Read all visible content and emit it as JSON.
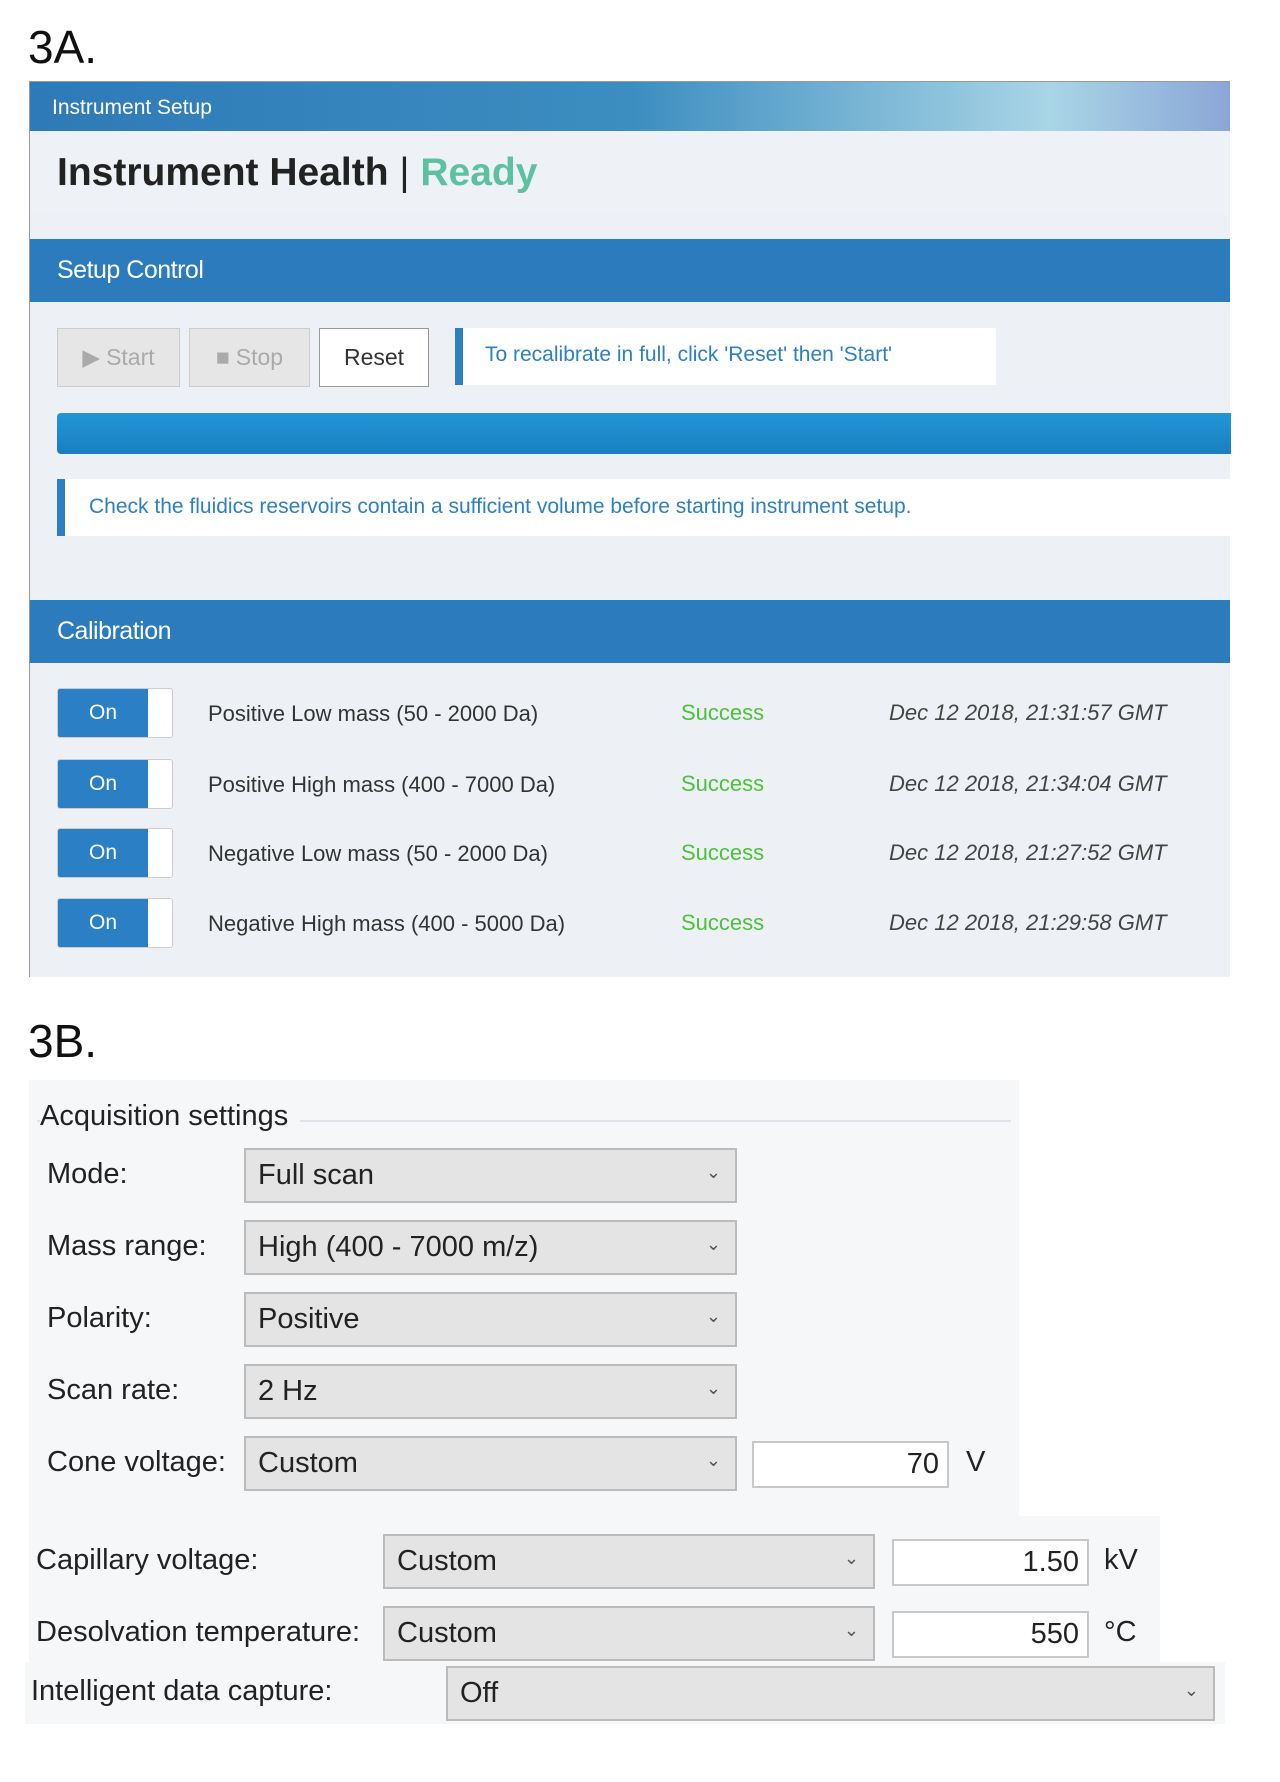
{
  "figure_a_label": "3A.",
  "figure_b_label": "3B.",
  "panel_a": {
    "window_title": "Instrument Setup",
    "health_title": "Instrument Health",
    "health_separator": "|",
    "health_status": "Ready",
    "setup_control": {
      "title": "Setup Control",
      "start_label": "Start",
      "stop_label": "Stop",
      "reset_label": "Reset",
      "info_text": "To recalibrate in full, click 'Reset' then 'Start'",
      "notice_text": "Check the fluidics reservoirs contain a sufficient volume before starting instrument setup."
    },
    "calibration": {
      "title": "Calibration",
      "rows": [
        {
          "toggle": "On",
          "label": "Positive Low mass (50 - 2000 Da)",
          "status": "Success",
          "date": "Dec 12 2018, 21:31:57 GMT"
        },
        {
          "toggle": "On",
          "label": "Positive High mass (400 - 7000 Da)",
          "status": "Success",
          "date": "Dec 12 2018, 21:34:04 GMT"
        },
        {
          "toggle": "On",
          "label": "Negative Low mass (50 - 2000 Da)",
          "status": "Success",
          "date": "Dec 12 2018, 21:27:52 GMT"
        },
        {
          "toggle": "On",
          "label": "Negative High mass (400 - 5000 Da)",
          "status": "Success",
          "date": "Dec 12 2018, 21:29:58 GMT"
        }
      ]
    },
    "colors": {
      "accent": "#2b7bbd",
      "ready": "#5cc1a0",
      "success": "#4cc23a"
    }
  },
  "panel_b": {
    "group_title": "Acquisition settings",
    "fields": [
      {
        "label": "Mode:",
        "value": "Full scan"
      },
      {
        "label": "Mass range:",
        "value": "High (400 - 7000 m/z)"
      },
      {
        "label": "Polarity:",
        "value": "Positive"
      },
      {
        "label": "Scan rate:",
        "value": "2 Hz"
      },
      {
        "label": "Cone voltage:",
        "value": "Custom",
        "input": "70",
        "unit": "V"
      }
    ],
    "source_fields": [
      {
        "label": "Capillary voltage:",
        "value": "Custom",
        "input": "1.50",
        "unit": "kV"
      },
      {
        "label": "Desolvation temperature:",
        "value": "Custom",
        "input": "550",
        "unit": "°C"
      }
    ],
    "idc": {
      "label": "Intelligent data capture:",
      "value": "Off"
    }
  }
}
